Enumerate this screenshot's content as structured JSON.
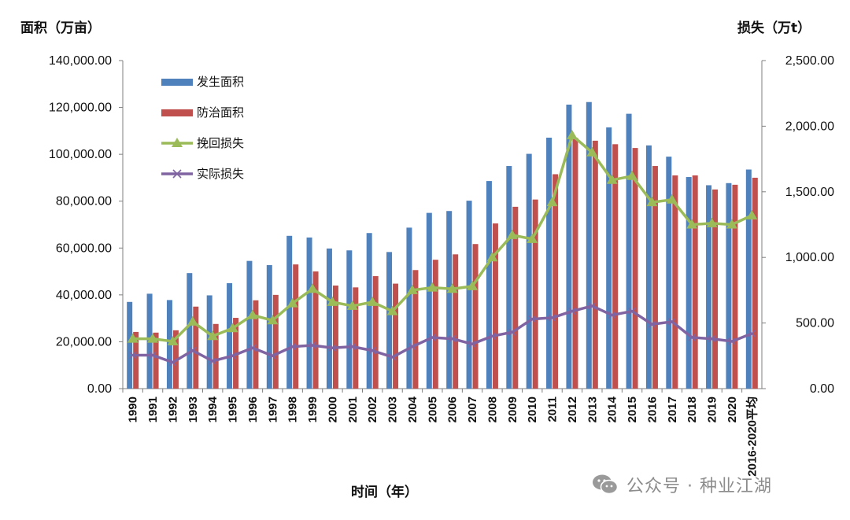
{
  "chart_data": {
    "type": "bar",
    "left_axis_title": "面积（万亩）",
    "right_axis_title": "损失（万t）",
    "xlabel": "时间（年）",
    "categories": [
      "1990",
      "1991",
      "1992",
      "1993",
      "1994",
      "1995",
      "1996",
      "1997",
      "1998",
      "1999",
      "2000",
      "2001",
      "2002",
      "2003",
      "2004",
      "2005",
      "2006",
      "2007",
      "2008",
      "2009",
      "2010",
      "2011",
      "2012",
      "2013",
      "2014",
      "2015",
      "2016",
      "2017",
      "2018",
      "2019",
      "2020",
      "2016-2020平均"
    ],
    "left_ylim": [
      0,
      140000
    ],
    "right_ylim": [
      0,
      2500
    ],
    "left_ticks": [
      "0.00",
      "20,000.00",
      "40,000.00",
      "60,000.00",
      "80,000.00",
      "100,000.00",
      "120,000.00",
      "140,000.00"
    ],
    "right_ticks": [
      "0.00",
      "500.00",
      "1,000.00",
      "1,500.00",
      "2,000.00",
      "2,500.00"
    ],
    "legend_position": "top-left",
    "grid": false,
    "series": [
      {
        "name": "发生面积",
        "kind": "bar",
        "axis": "left",
        "color": "#4f81bd",
        "values": [
          37000,
          40500,
          37800,
          49300,
          39800,
          45000,
          54500,
          52700,
          65200,
          64500,
          59800,
          59000,
          66400,
          58300,
          68700,
          75000,
          75800,
          80200,
          88600,
          95000,
          100200,
          107100,
          121200,
          122300,
          111500,
          117300,
          103800,
          99000,
          90300,
          86800,
          87700,
          93500
        ]
      },
      {
        "name": "防治面积",
        "kind": "bar",
        "axis": "left",
        "color": "#c0504d",
        "values": [
          24200,
          23900,
          24900,
          35000,
          27600,
          30200,
          37700,
          40000,
          53000,
          50000,
          44000,
          43200,
          48000,
          44800,
          50600,
          55000,
          57300,
          61700,
          70500,
          77600,
          80700,
          91500,
          107000,
          105800,
          104300,
          102700,
          95000,
          91000,
          91000,
          85000,
          87000,
          90000
        ]
      },
      {
        "name": "挽回损失",
        "kind": "line",
        "axis": "right",
        "color": "#9bbb59",
        "marker": "triangle",
        "values": [
          380,
          380,
          360,
          510,
          400,
          460,
          560,
          520,
          650,
          760,
          660,
          630,
          660,
          590,
          750,
          770,
          760,
          780,
          1000,
          1170,
          1140,
          1420,
          1930,
          1800,
          1590,
          1620,
          1420,
          1440,
          1250,
          1260,
          1250,
          1320
        ]
      },
      {
        "name": "实际损失",
        "kind": "line",
        "axis": "right",
        "color": "#8064a2",
        "marker": "x",
        "values": [
          255,
          255,
          200,
          290,
          210,
          250,
          310,
          250,
          320,
          330,
          310,
          320,
          290,
          240,
          320,
          390,
          380,
          340,
          400,
          430,
          530,
          540,
          590,
          630,
          560,
          590,
          490,
          510,
          390,
          380,
          360,
          420
        ]
      }
    ]
  },
  "watermark": {
    "text": "公众号 · 种业江湖",
    "icon": "wechat-icon"
  }
}
